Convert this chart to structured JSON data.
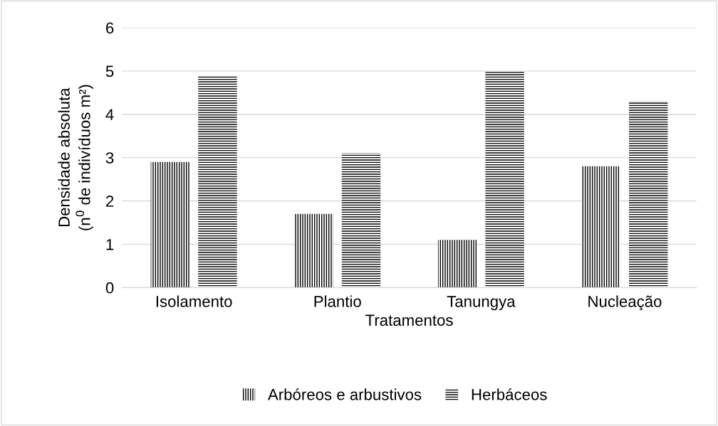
{
  "chart_data": {
    "type": "bar",
    "xlabel": "Tratamentos",
    "ylabel": "Densidade absoluta\n(n$^{0}$ de indivíduos m²)",
    "categories": [
      "Isolamento",
      "Plantio",
      "Tanungya",
      "Nucleação"
    ],
    "series": [
      {
        "name": "Arbóreos e arbustivos",
        "color": "#000000",
        "values": [
          2.9,
          1.7,
          1.1,
          2.8
        ]
      },
      {
        "name": "Herbáceos",
        "color": "#000000",
        "values": [
          4.9,
          3.1,
          5.0,
          4.3
        ]
      }
    ],
    "ylim": [
      0,
      6
    ],
    "yticks": [
      0,
      1,
      2,
      3,
      4,
      5,
      6
    ],
    "grid": "y",
    "legend": "bottom"
  }
}
